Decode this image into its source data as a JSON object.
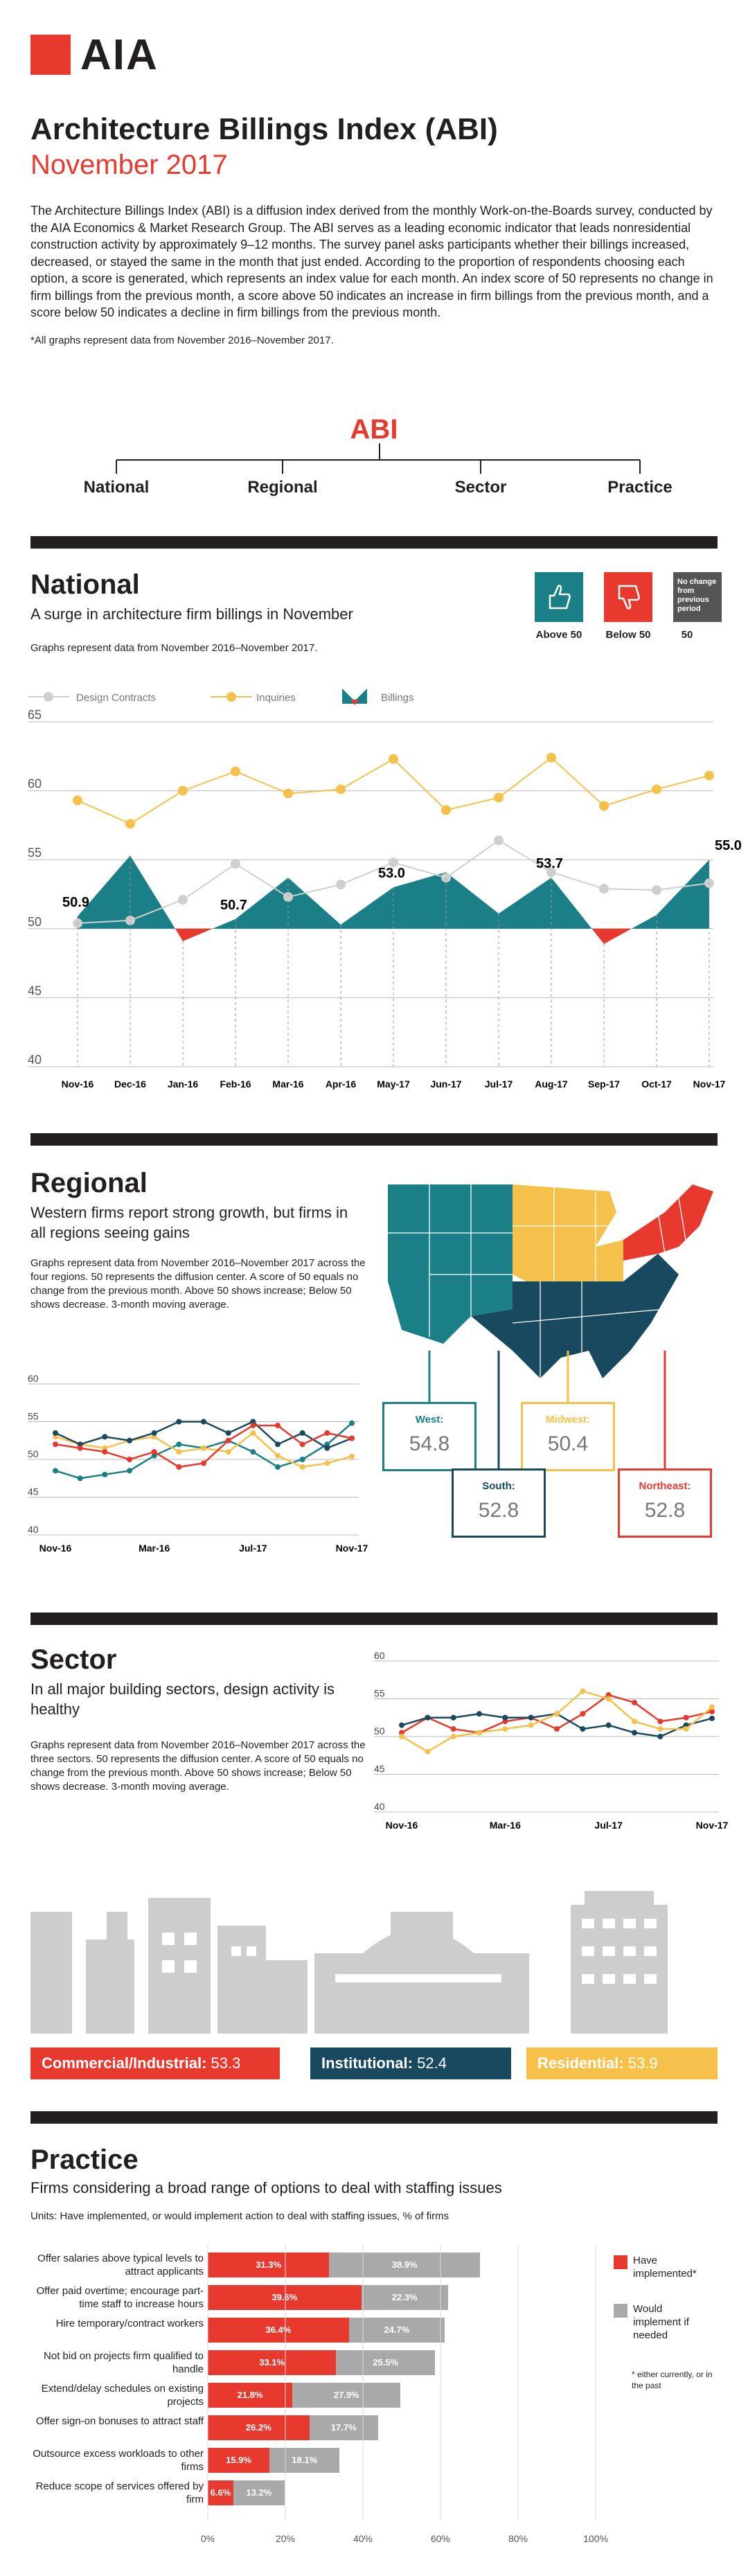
{
  "header": {
    "logo_text": "AIA",
    "title": "Architecture Billings Index (ABI)",
    "subtitle": "November 2017",
    "intro": "The Architecture Billings Index (ABI) is a diffusion index derived from the monthly Work-on-the-Boards survey, conducted by the AIA Economics & Market Research Group. The ABI serves as a leading economic indicator that leads nonresidential construction activity by approximately 9–12 months. The survey panel asks participants whether their billings increased, decreased, or stayed the same in the month that just ended. According to the proportion of respondents choosing each option, a score is generated, which represents an index value for each month. An index score of 50 represents no change in firm billings from the previous month, a score above 50 indicates an increase in firm billings from the previous month, and a score below 50 indicates a decline in firm billings from the previous month.",
    "footnote": "*All graphs represent data from November 2016–November 2017."
  },
  "tree": {
    "root": "ABI",
    "branches": [
      "National",
      "Regional",
      "Sector",
      "Practice"
    ]
  },
  "national": {
    "title": "National",
    "subtitle": "A surge in architecture firm billings in November",
    "note": "Graphs represent data from November 2016–November 2017.",
    "legend": {
      "above": "Above 50",
      "below": "Below 50",
      "nochange_label": "No change from previous period",
      "nochange_value": "50",
      "design": "Design Contracts",
      "inquiries": "Inquiries",
      "billings": "Billings"
    }
  },
  "regional": {
    "title": "Regional",
    "subtitle": "Western firms report strong growth, but firms in all regions seeing gains",
    "note": "Graphs represent data from November 2016–November 2017 across the four regions. 50 represents the diffusion center. A score of 50 equals no change from the previous month. Above 50 shows increase; Below 50 shows decrease. 3-month moving average.",
    "cards": [
      {
        "name": "West:",
        "value": "54.8"
      },
      {
        "name": "Midwest:",
        "value": "50.4"
      },
      {
        "name": "South:",
        "value": "52.8"
      },
      {
        "name": "Northeast:",
        "value": "52.8"
      }
    ]
  },
  "sector": {
    "title": "Sector",
    "subtitle": "In all major building sectors, design activity is healthy",
    "note": "Graphs represent data from November 2016–November 2017 across the three sectors. 50 represents the diffusion center. A score of 50 equals no change from the previous month. Above 50 shows increase; Below 50 shows decrease. 3-month moving average.",
    "bars": [
      {
        "name": "Commercial/Industrial:",
        "value": "53.3"
      },
      {
        "name": "Institutional:",
        "value": "52.4"
      },
      {
        "name": "Residential:",
        "value": "53.9"
      }
    ]
  },
  "practice": {
    "title": "Practice",
    "subtitle": "Firms considering a broad range of options to deal with staffing issues",
    "units": "Units: Have implemented, or would implement action to deal with staffing issues, % of firms",
    "legend_have": "Have implemented*",
    "legend_would": "Would implement if needed",
    "legend_note": "* either currently, or in the past"
  },
  "colors": {
    "red": "#e8392f",
    "teal": "#1a7f86",
    "navy": "#18495f",
    "yellow": "#f6c14a",
    "gray": "#cfcfcf",
    "dark": "#231f20"
  },
  "chart_data": [
    {
      "id": "national",
      "type": "line",
      "x": [
        "Nov-16",
        "Dec-16",
        "Jan-16",
        "Feb-16",
        "Mar-16",
        "Apr-16",
        "May-17",
        "Jun-17",
        "Jul-17",
        "Aug-17",
        "Sep-17",
        "Oct-17",
        "Nov-17"
      ],
      "ylim": [
        40,
        65
      ],
      "yticks": [
        40,
        45,
        50,
        55,
        60,
        65
      ],
      "series": [
        {
          "name": "Design Contracts",
          "values": [
            50.4,
            50.6,
            52.1,
            54.7,
            52.3,
            53.2,
            54.8,
            53.7,
            56.4,
            54.1,
            52.9,
            52.8,
            53.3
          ]
        },
        {
          "name": "Inquiries",
          "values": [
            59.3,
            57.6,
            60.0,
            61.4,
            59.8,
            60.1,
            62.3,
            58.6,
            59.5,
            62.4,
            58.9,
            60.1,
            61.1
          ]
        },
        {
          "name": "Billings",
          "values": [
            50.9,
            55.3,
            49.1,
            50.7,
            53.7,
            50.3,
            53.0,
            54.1,
            51.1,
            53.7,
            48.9,
            51.0,
            55.0
          ]
        }
      ],
      "labels": [
        {
          "index": 0,
          "text": "50.9"
        },
        {
          "index": 3,
          "text": "50.7"
        },
        {
          "index": 6,
          "text": "53.0"
        },
        {
          "index": 9,
          "text": "53.7"
        },
        {
          "index": 12,
          "text": "55.0"
        }
      ]
    },
    {
      "id": "regional",
      "type": "line",
      "xticks": [
        "Nov-16",
        "Mar-16",
        "Jul-17",
        "Nov-17"
      ],
      "ylim": [
        40,
        60
      ],
      "yticks": [
        40,
        45,
        50,
        55,
        60
      ],
      "series": [
        {
          "name": "West",
          "values": [
            48.5,
            47.5,
            48.0,
            48.5,
            50.5,
            52.0,
            51.5,
            52.5,
            51.0,
            49.0,
            50.0,
            52.0,
            54.8
          ]
        },
        {
          "name": "Midwest",
          "values": [
            53.0,
            52.0,
            51.5,
            52.5,
            53.0,
            51.0,
            51.5,
            51.0,
            53.5,
            50.5,
            49.0,
            49.5,
            50.4
          ]
        },
        {
          "name": "South",
          "values": [
            53.5,
            52.0,
            53.0,
            52.5,
            53.5,
            55.0,
            55.0,
            53.5,
            55.0,
            52.0,
            53.5,
            51.5,
            52.8
          ]
        },
        {
          "name": "Northeast",
          "values": [
            52.0,
            51.5,
            51.0,
            50.0,
            51.0,
            49.0,
            49.5,
            52.5,
            54.5,
            54.5,
            52.0,
            53.5,
            52.8
          ]
        }
      ]
    },
    {
      "id": "sector",
      "type": "line",
      "xticks": [
        "Nov-16",
        "Mar-16",
        "Jul-17",
        "Nov-17"
      ],
      "ylim": [
        40,
        60
      ],
      "yticks": [
        40,
        45,
        50,
        55,
        60
      ],
      "series": [
        {
          "name": "Commercial/Industrial",
          "values": [
            50.5,
            52.5,
            51.0,
            50.5,
            52.0,
            52.5,
            51.0,
            53.0,
            55.5,
            54.5,
            52.0,
            52.5,
            53.3
          ]
        },
        {
          "name": "Institutional",
          "values": [
            51.5,
            52.5,
            52.5,
            53.0,
            52.5,
            52.5,
            53.0,
            51.0,
            51.5,
            50.5,
            50.0,
            51.5,
            52.4
          ]
        },
        {
          "name": "Residential",
          "values": [
            50.0,
            48.0,
            50.0,
            50.5,
            51.0,
            51.5,
            53.0,
            56.0,
            55.0,
            52.0,
            51.0,
            51.0,
            53.9
          ]
        }
      ]
    },
    {
      "id": "practice",
      "type": "bar",
      "categories": [
        "Offer salaries above typical levels to attract applicants",
        "Offer paid overtime; encourage part-time staff to increase hours",
        "Hire temporary/contract workers",
        "Not bid on projects firm qualified to handle",
        "Extend/delay schedules on existing projects",
        "Offer sign-on bonuses to attract staff",
        "Outsource excess workloads to other firms",
        "Reduce scope of services offered by firm"
      ],
      "series": [
        {
          "name": "Have implemented*",
          "values": [
            31.3,
            39.6,
            36.4,
            33.1,
            21.8,
            26.2,
            15.9,
            6.6
          ]
        },
        {
          "name": "Would implement if needed",
          "values": [
            38.9,
            22.3,
            24.7,
            25.5,
            27.9,
            17.7,
            18.1,
            13.2
          ]
        }
      ],
      "xticks": [
        "0%",
        "20%",
        "40%",
        "60%",
        "80%",
        "100%"
      ],
      "xlim": [
        0,
        100
      ]
    }
  ]
}
